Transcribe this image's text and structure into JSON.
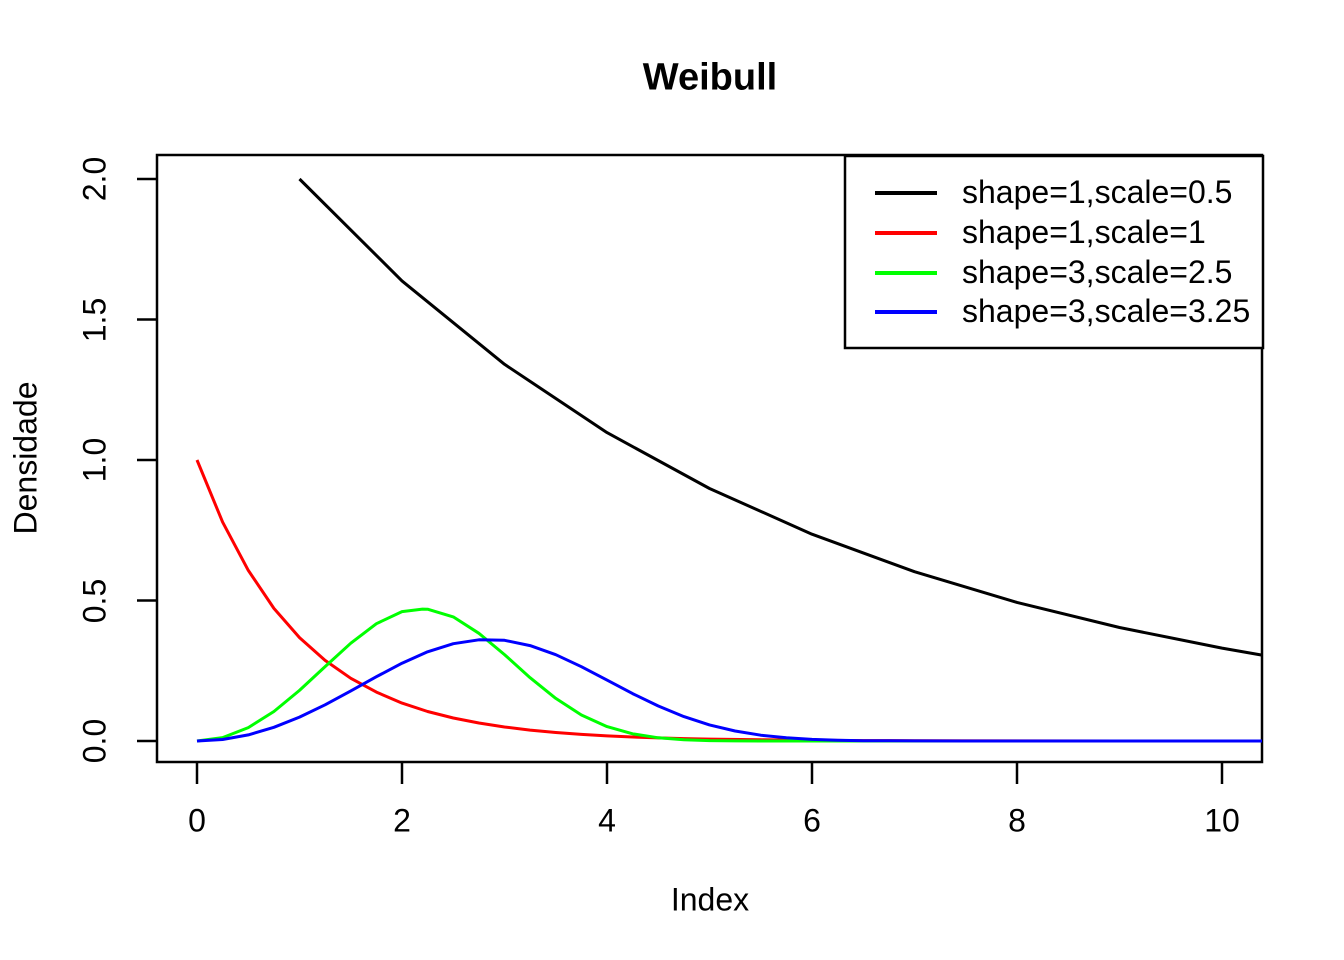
{
  "chart_data": {
    "type": "line",
    "title": "Weibull",
    "xlabel": "Index",
    "ylabel": "Densidade",
    "xlim": [
      0,
      10
    ],
    "ylim": [
      0,
      2
    ],
    "grid": false,
    "background": "#ffffff",
    "axis_color": "#000000",
    "x_ticks": {
      "values": [
        0,
        2,
        4,
        6,
        8,
        10
      ],
      "labels": [
        "0",
        "2",
        "4",
        "6",
        "8",
        "10"
      ]
    },
    "y_ticks": {
      "values": [
        0,
        0.5,
        1,
        1.5,
        2
      ],
      "labels": [
        "0.0",
        "0.5",
        "1.0",
        "1.5",
        "2.0"
      ]
    },
    "legend": {
      "position": "topright"
    },
    "series": [
      {
        "key": "weibull-shape1-scale0.5",
        "name": "shape=1,scale=0.5",
        "color": "#000000",
        "shape": 1,
        "scale": 0.5,
        "points": [
          [
            1,
            2.0
          ],
          [
            2,
            1.6375
          ],
          [
            3,
            1.3406
          ],
          [
            4,
            1.0976
          ],
          [
            5,
            0.8987
          ],
          [
            6,
            0.7358
          ],
          [
            7,
            0.6024
          ],
          [
            8,
            0.4931
          ],
          [
            9,
            0.4038
          ],
          [
            10,
            0.3306
          ],
          [
            10.39,
            0.3057
          ]
        ]
      },
      {
        "key": "weibull-shape1-scale1",
        "name": "shape=1,scale=1",
        "color": "#FF0000",
        "shape": 1,
        "scale": 1,
        "points": [
          [
            0,
            1.0
          ],
          [
            0.25,
            0.779
          ],
          [
            0.5,
            0.607
          ],
          [
            0.75,
            0.472
          ],
          [
            1,
            0.368
          ],
          [
            1.25,
            0.287
          ],
          [
            1.5,
            0.223
          ],
          [
            1.75,
            0.174
          ],
          [
            2,
            0.135
          ],
          [
            2.25,
            0.105
          ],
          [
            2.5,
            0.082
          ],
          [
            2.75,
            0.064
          ],
          [
            3,
            0.0498
          ],
          [
            3.25,
            0.0388
          ],
          [
            3.5,
            0.0302
          ],
          [
            3.75,
            0.0235
          ],
          [
            4,
            0.0183
          ],
          [
            4.25,
            0.0143
          ],
          [
            4.5,
            0.0111
          ],
          [
            4.75,
            0.0087
          ],
          [
            5,
            0.0067
          ],
          [
            5.5,
            0.0041
          ],
          [
            6,
            0.0025
          ],
          [
            6.5,
            0.0015
          ],
          [
            7,
            0.0009
          ],
          [
            8,
            0.0003
          ],
          [
            9,
            0.0001
          ],
          [
            10.39,
            3e-05
          ]
        ]
      },
      {
        "key": "weibull-shape3-scale2.5",
        "name": "shape=3,scale=2.5",
        "color": "#00FF00",
        "shape": 3,
        "scale": 2.5,
        "points": [
          [
            0,
            0
          ],
          [
            0.25,
            0.012
          ],
          [
            0.5,
            0.0476
          ],
          [
            0.75,
            0.1051
          ],
          [
            1,
            0.1801
          ],
          [
            1.25,
            0.2647
          ],
          [
            1.5,
            0.3482
          ],
          [
            1.75,
            0.4174
          ],
          [
            2,
            0.4604
          ],
          [
            2.2,
            0.4695
          ],
          [
            2.25,
            0.4692
          ],
          [
            2.5,
            0.4415
          ],
          [
            2.75,
            0.3834
          ],
          [
            3,
            0.3073
          ],
          [
            3.25,
            0.2254
          ],
          [
            3.5,
            0.1517
          ],
          [
            3.75,
            0.0925
          ],
          [
            4,
            0.0511
          ],
          [
            4.25,
            0.0255
          ],
          [
            4.5,
            0.0114
          ],
          [
            4.75,
            0.0046
          ],
          [
            5,
            0.0016
          ],
          [
            5.25,
            0.0005
          ],
          [
            5.5,
            0.0001
          ],
          [
            6,
            0
          ],
          [
            10.39,
            0
          ]
        ]
      },
      {
        "key": "weibull-shape3-scale3.25",
        "name": "shape=3,scale=3.25",
        "color": "#0000FF",
        "shape": 3,
        "scale": 3.25,
        "points": [
          [
            0,
            0
          ],
          [
            0.25,
            0.0055
          ],
          [
            0.5,
            0.0218
          ],
          [
            0.75,
            0.0486
          ],
          [
            1,
            0.0849
          ],
          [
            1.25,
            0.129
          ],
          [
            1.5,
            0.1782
          ],
          [
            1.75,
            0.2289
          ],
          [
            2,
            0.2769
          ],
          [
            2.25,
            0.3175
          ],
          [
            2.5,
            0.3463
          ],
          [
            2.75,
            0.3603
          ],
          [
            3,
            0.3584
          ],
          [
            3.25,
            0.3396
          ],
          [
            3.5,
            0.307
          ],
          [
            3.75,
            0.2645
          ],
          [
            4,
            0.2167
          ],
          [
            4.25,
            0.1688
          ],
          [
            4.5,
            0.1245
          ],
          [
            4.75,
            0.0869
          ],
          [
            5,
            0.0574
          ],
          [
            5.25,
            0.0356
          ],
          [
            5.5,
            0.0208
          ],
          [
            5.75,
            0.0114
          ],
          [
            6,
            0.0058
          ],
          [
            6.25,
            0.0028
          ],
          [
            6.5,
            0.0012
          ],
          [
            7,
            0.0002
          ],
          [
            7.5,
            0
          ],
          [
            10.39,
            0
          ]
        ]
      }
    ]
  }
}
